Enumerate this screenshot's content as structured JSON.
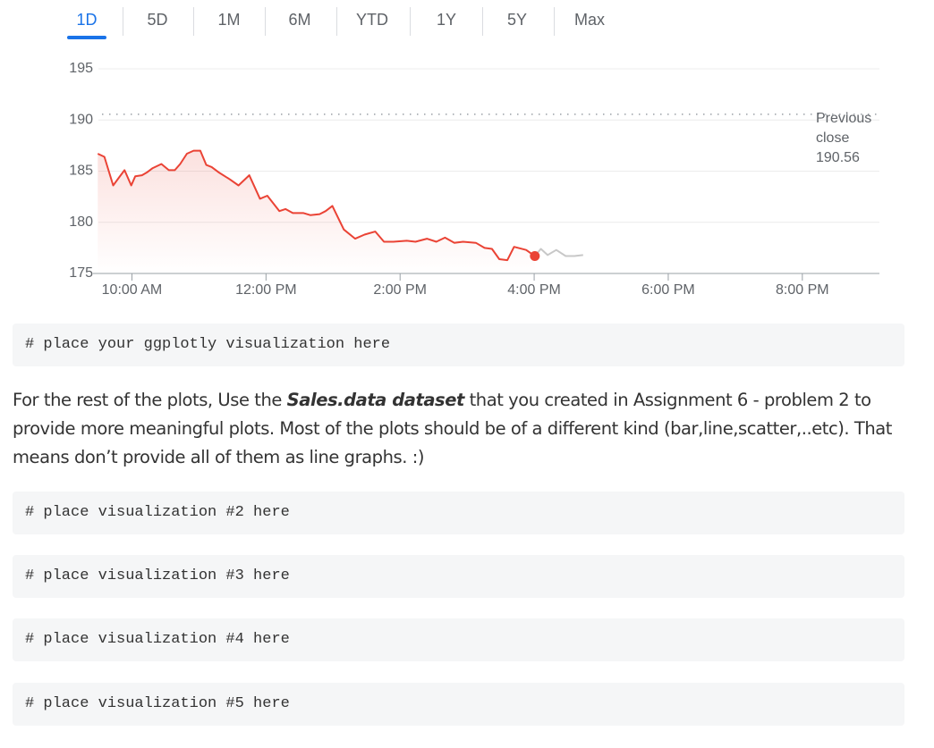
{
  "tabs": [
    "1D",
    "5D",
    "1M",
    "6M",
    "YTD",
    "1Y",
    "5Y",
    "Max"
  ],
  "active_tab": 0,
  "chart_data": {
    "type": "line",
    "x": [
      9.49,
      9.59,
      9.72,
      9.81,
      9.89,
      9.99,
      10.05,
      10.15,
      10.23,
      10.31,
      10.44,
      10.55,
      10.64,
      10.72,
      10.82,
      10.92,
      11.02,
      11.11,
      11.19,
      11.29,
      11.46,
      11.59,
      11.75,
      11.91,
      12.02,
      12.2,
      12.29,
      12.4,
      12.56,
      12.66,
      12.8,
      12.89,
      12.99,
      13.16,
      13.33,
      13.47,
      13.63,
      13.76,
      13.9,
      14.1,
      14.23,
      14.4,
      14.54,
      14.67,
      14.81,
      14.94,
      15.13,
      15.26,
      15.37,
      15.48,
      15.6,
      15.7,
      15.88,
      16.01,
      16.1,
      16.2,
      16.33,
      16.47,
      16.6,
      16.73
    ],
    "series": [
      {
        "color": "#ea4335",
        "values": [
          186.7,
          186.4,
          183.6,
          184.4,
          185.1,
          183.6,
          184.5,
          184.6,
          184.9,
          185.3,
          185.7,
          185.1,
          185.1,
          185.7,
          186.7,
          187.0,
          187.0,
          185.6,
          185.4,
          184.9,
          184.2,
          183.6,
          184.6,
          182.3,
          182.6,
          181.1,
          181.3,
          180.9,
          180.9,
          180.7,
          180.8,
          181.1,
          181.6,
          179.3,
          178.4,
          178.8,
          179.1,
          178.1,
          178.1,
          178.2,
          178.1,
          178.4,
          178.1,
          178.5,
          178.0,
          178.1,
          178.0,
          177.5,
          177.4,
          176.4,
          176.3,
          177.6,
          177.3,
          176.7,
          null,
          null,
          null,
          null,
          null,
          null
        ]
      },
      {
        "color": "#c8c8c8",
        "values": [
          null,
          null,
          null,
          null,
          null,
          null,
          null,
          null,
          null,
          null,
          null,
          null,
          null,
          null,
          null,
          null,
          null,
          null,
          null,
          null,
          null,
          null,
          null,
          null,
          null,
          null,
          null,
          null,
          null,
          null,
          null,
          null,
          null,
          null,
          null,
          null,
          null,
          null,
          null,
          null,
          null,
          null,
          null,
          null,
          null,
          null,
          null,
          null,
          null,
          null,
          null,
          null,
          null,
          176.7,
          177.4,
          176.8,
          177.3,
          176.7,
          176.7,
          176.8
        ]
      }
    ],
    "xlim": [
      9.5,
      21.15
    ],
    "xticks": [
      {
        "value": 10,
        "label": "10:00 AM"
      },
      {
        "value": 12,
        "label": "12:00 PM"
      },
      {
        "value": 14,
        "label": "2:00 PM"
      },
      {
        "value": 16,
        "label": "4:00 PM"
      },
      {
        "value": 18,
        "label": "6:00 PM"
      },
      {
        "value": 20,
        "label": "8:00 PM"
      }
    ],
    "ylim": [
      175,
      195
    ],
    "yticks": [
      175,
      180,
      185,
      190,
      195
    ],
    "grid": true,
    "previous_close": {
      "label_lines": [
        "Previous",
        "close"
      ],
      "value": 190.56
    }
  },
  "code_blocks": [
    "# place your ggplotly visualization here",
    "# place visualization #2 here",
    "# place visualization #3 here",
    "# place visualization #4 here",
    "# place visualization #5 here"
  ],
  "paragraph": {
    "before": "For the rest of the plots, Use the ",
    "emphasis": "Sales.data dataset",
    "after": " that you created in Assignment 6 - problem 2 to provide more meaningful plots. Most of the plots should be of a different kind (bar,line,scatter,..etc). That means don’t provide all of them as line graphs. :)"
  }
}
